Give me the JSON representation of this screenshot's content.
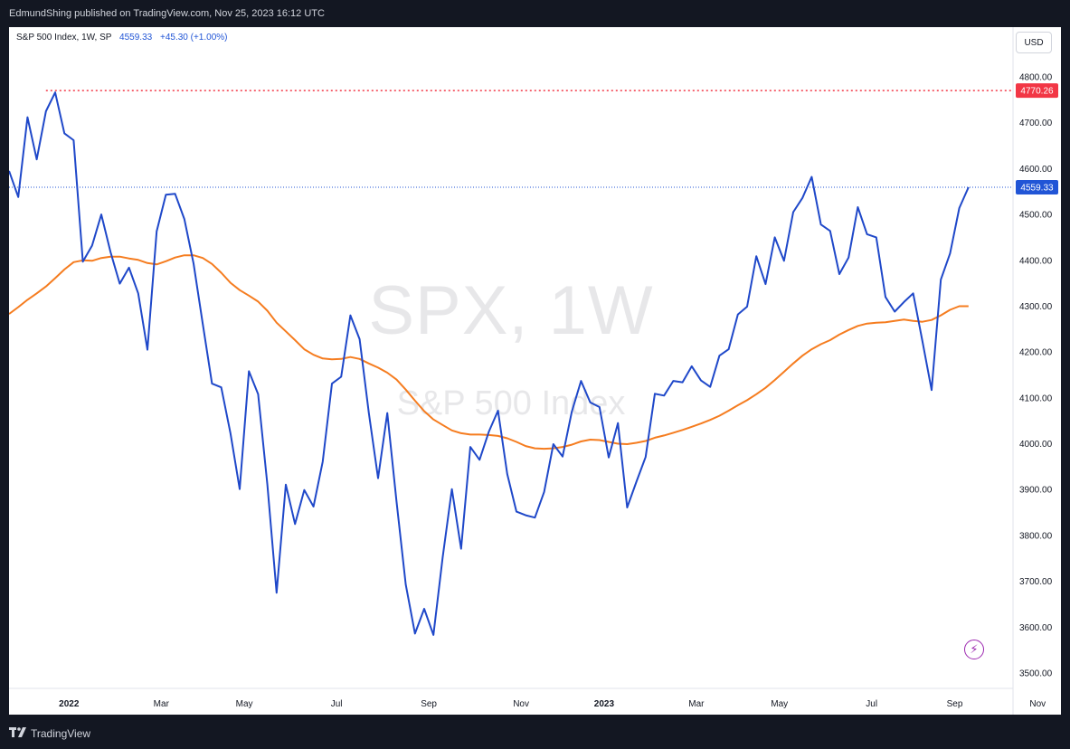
{
  "header": {
    "publisher_text": "EdmundShing published on TradingView.com, Nov 25, 2023 16:12 UTC"
  },
  "legend": {
    "symbol": "S&P 500 Index, 1W, SP",
    "last": "4559.33",
    "change": "+45.30 (+1.00%)"
  },
  "currency": "USD",
  "watermark": {
    "main": "SPX, 1W",
    "sub": "S&P 500 Index"
  },
  "footer": {
    "brand": "TradingView"
  },
  "colors": {
    "price": "#1f48c9",
    "ma": "#f57c1f",
    "ath": "#f23645",
    "last_label": "#2155d6"
  },
  "chart_data": {
    "type": "line",
    "ylim": [
      3475,
      4860
    ],
    "yticks": [
      "3500.00",
      "3600.00",
      "3700.00",
      "3800.00",
      "3900.00",
      "4000.00",
      "4100.00",
      "4200.00",
      "4300.00",
      "4400.00",
      "4500.00",
      "4600.00",
      "4700.00",
      "4800.00"
    ],
    "xlabels": [
      {
        "label": "2022",
        "i": 6.5
      },
      {
        "label": "Mar",
        "i": 16.5
      },
      {
        "label": "May",
        "i": 25.5
      },
      {
        "label": "Jul",
        "i": 35.5
      },
      {
        "label": "Sep",
        "i": 45.5
      },
      {
        "label": "Nov",
        "i": 55.5
      },
      {
        "label": "2023",
        "i": 64.5
      },
      {
        "label": "Mar",
        "i": 74.5
      },
      {
        "label": "May",
        "i": 83.5
      },
      {
        "label": "Jul",
        "i": 93.5
      },
      {
        "label": "Sep",
        "i": 102.5
      },
      {
        "label": "Nov",
        "i": 111.5
      }
    ],
    "hlines": [
      {
        "value": 4770.26,
        "label": "4770.26",
        "style": "dotted",
        "color": "#f23645"
      },
      {
        "value": 4559.33,
        "label": "4559.33",
        "style": "dotted",
        "color": "#2155d6"
      }
    ],
    "series": [
      {
        "values": [
          4595,
          4538,
          4712,
          4620,
          4725,
          4766,
          4677,
          4662,
          4397,
          4432,
          4500,
          4418,
          4349,
          4384,
          4328,
          4205,
          4463,
          4543,
          4545,
          4490,
          4393,
          4261,
          4131,
          4123,
          4023,
          3901,
          4158,
          4108,
          3911,
          3675,
          3911,
          3825,
          3899,
          3863,
          3961,
          4131,
          4146,
          4280,
          4228,
          4067,
          3925,
          4067,
          3874,
          3693,
          3586,
          3640,
          3583,
          3752,
          3901,
          3771,
          3993,
          3965,
          4026,
          4072,
          3934,
          3852,
          3844,
          3839,
          3895,
          3999,
          3972,
          4070,
          4137,
          4090,
          4080,
          3970,
          4045,
          3861,
          3917,
          3971,
          4109,
          4105,
          4137,
          4134,
          4169,
          4138,
          4124,
          4192,
          4206,
          4282,
          4299,
          4409,
          4348,
          4450,
          4399,
          4505,
          4536,
          4582,
          4478,
          4464,
          4370,
          4406,
          4516,
          4457,
          4450,
          4320,
          4288,
          4309,
          4328,
          4224,
          4117,
          4358,
          4415,
          4514,
          4559.33
        ]
      },
      {
        "values": [
          4283,
          4298,
          4314,
          4328,
          4343,
          4361,
          4380,
          4396,
          4400,
          4399,
          4405,
          4408,
          4408,
          4404,
          4401,
          4394,
          4391,
          4398,
          4406,
          4411,
          4411,
          4405,
          4392,
          4373,
          4351,
          4335,
          4323,
          4310,
          4290,
          4264,
          4245,
          4226,
          4206,
          4194,
          4186,
          4184,
          4185,
          4189,
          4185,
          4175,
          4166,
          4155,
          4140,
          4118,
          4094,
          4071,
          4053,
          4041,
          4029,
          4023,
          4020,
          4020,
          4019,
          4017,
          4012,
          4004,
          3995,
          3990,
          3989,
          3990,
          3993,
          3998,
          4005,
          4009,
          4008,
          4004,
          4000,
          3999,
          4002,
          4006,
          4013,
          4018,
          4024,
          4030,
          4037,
          4044,
          4052,
          4061,
          4072,
          4084,
          4095,
          4108,
          4122,
          4139,
          4157,
          4175,
          4192,
          4206,
          4217,
          4226,
          4238,
          4248,
          4257,
          4262,
          4264,
          4265,
          4268,
          4271,
          4268,
          4266,
          4270,
          4280,
          4292,
          4300,
          4300
        ]
      }
    ]
  }
}
